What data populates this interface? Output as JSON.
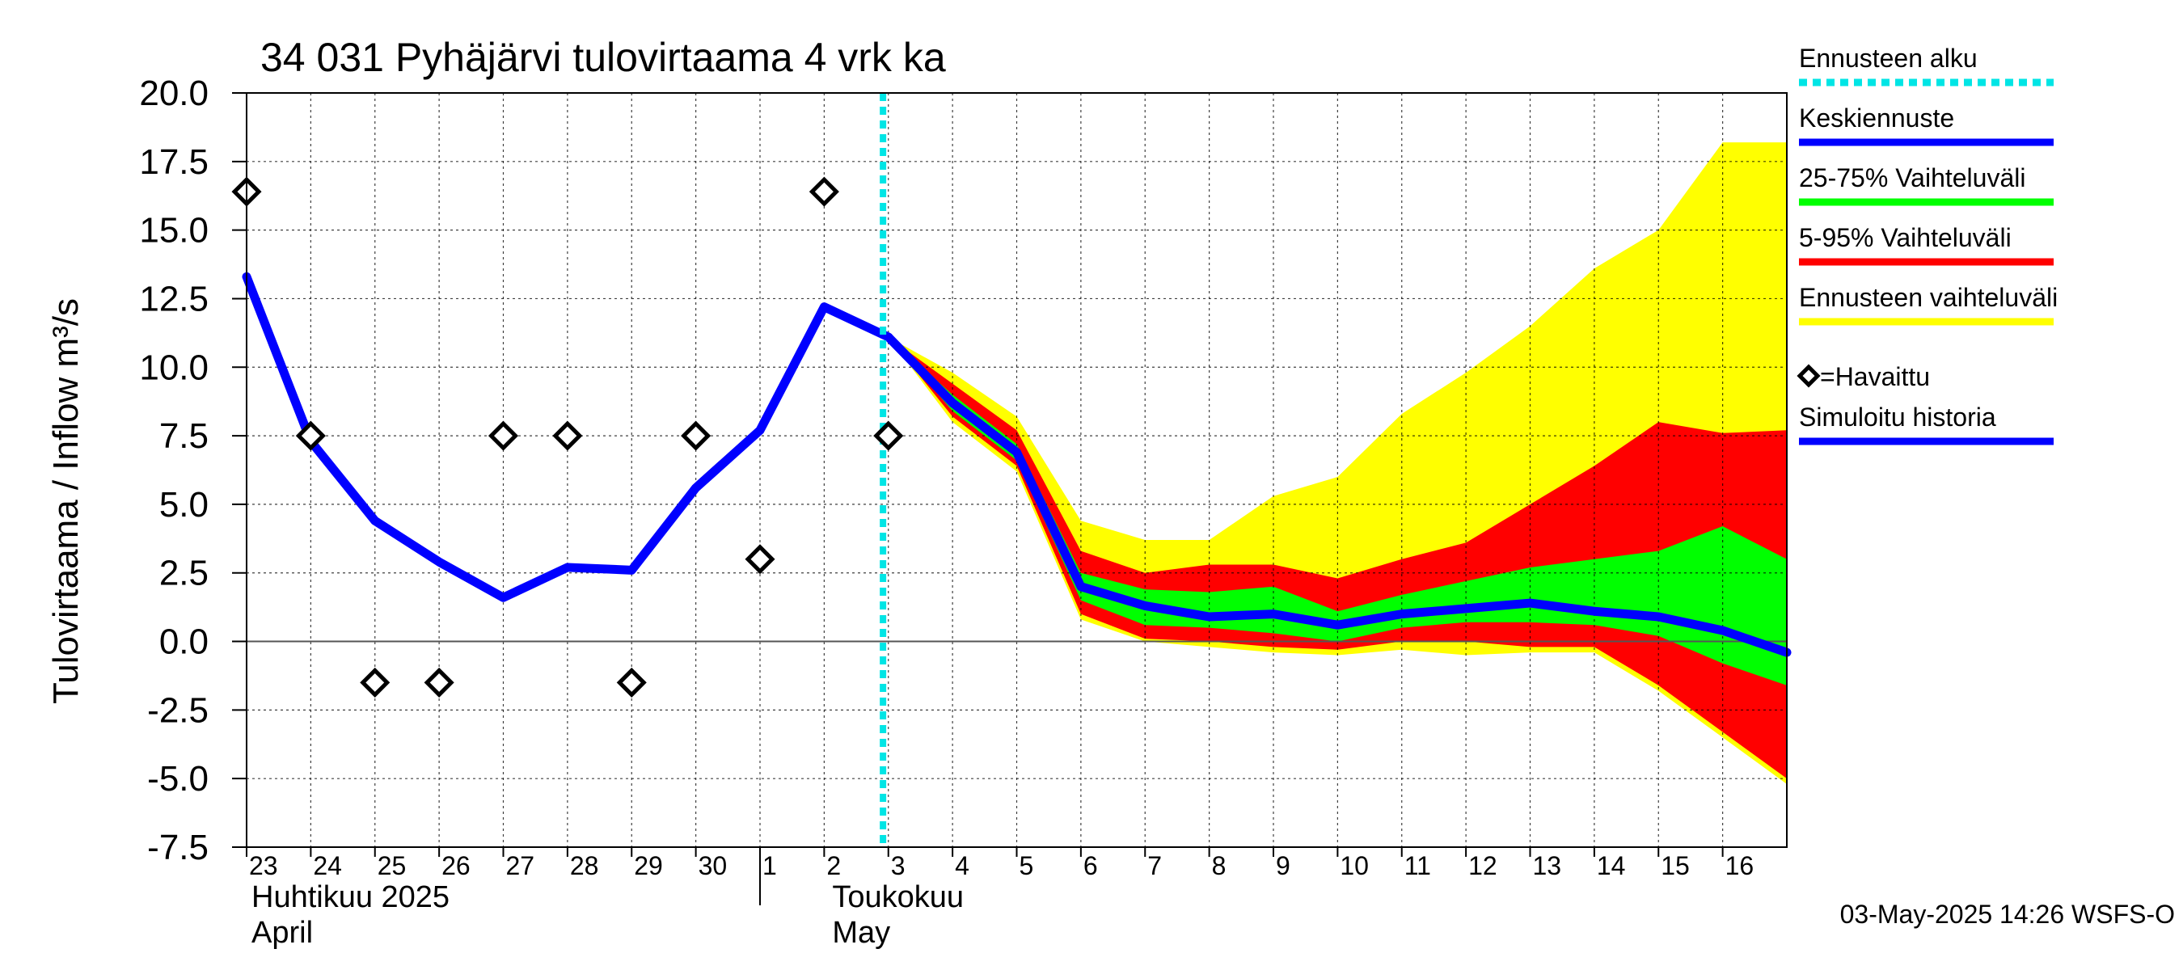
{
  "chart_data": {
    "type": "area",
    "title": "34 031 Pyhäjärvi tulovirtaama 4 vrk ka",
    "ylabel": "Tulovirtaama / Inflow    m³/s",
    "ylim": [
      -7.5,
      20.0
    ],
    "yticks": [
      "20.0",
      "17.5",
      "15.0",
      "12.5",
      "10.0",
      "7.5",
      "5.0",
      "2.5",
      "0.0",
      "-2.5",
      "-5.0",
      "-7.5"
    ],
    "x_start": "2025-04-23",
    "x_end": "2025-05-17",
    "x_tick_labels": [
      "23",
      "24",
      "25",
      "26",
      "27",
      "28",
      "29",
      "30",
      "1",
      "2",
      "3",
      "4",
      "5",
      "6",
      "7",
      "8",
      "9",
      "10",
      "11",
      "12",
      "13",
      "14",
      "15",
      "16"
    ],
    "month_labels": [
      {
        "line1": "Huhtikuu  2025",
        "line2": "April"
      },
      {
        "line1": "Toukokuu",
        "line2": "May"
      }
    ],
    "forecast_start": "2025-05-02 22:00",
    "footer": "03-May-2025 14:26 WSFS-O",
    "grid": true,
    "series": [
      {
        "name": "Simuloitu historia",
        "color": "#0000ff",
        "x": [
          "2025-04-23",
          "2025-04-24",
          "2025-04-25",
          "2025-04-26",
          "2025-04-27",
          "2025-04-28",
          "2025-04-29",
          "2025-04-30",
          "2025-05-01",
          "2025-05-02",
          "2025-05-03"
        ],
        "values": [
          13.3,
          7.3,
          4.4,
          2.9,
          1.6,
          2.7,
          2.6,
          5.6,
          7.7,
          12.2,
          11.1
        ]
      },
      {
        "name": "Keskiennuste",
        "color": "#0000ff",
        "x": [
          "2025-05-03",
          "2025-05-04",
          "2025-05-05",
          "2025-05-06",
          "2025-05-07",
          "2025-05-08",
          "2025-05-09",
          "2025-05-10",
          "2025-05-11",
          "2025-05-12",
          "2025-05-13",
          "2025-05-14",
          "2025-05-15",
          "2025-05-16",
          "2025-05-17"
        ],
        "values": [
          11.1,
          8.7,
          6.9,
          2.0,
          1.3,
          0.9,
          1.0,
          0.6,
          1.0,
          1.2,
          1.4,
          1.1,
          0.9,
          0.4,
          -0.4
        ]
      },
      {
        "name": "Ennusteen vaihteluväli",
        "color": "#ffff00",
        "x": [
          "2025-05-03",
          "2025-05-04",
          "2025-05-05",
          "2025-05-06",
          "2025-05-07",
          "2025-05-08",
          "2025-05-09",
          "2025-05-10",
          "2025-05-11",
          "2025-05-12",
          "2025-05-13",
          "2025-05-14",
          "2025-05-15",
          "2025-05-16",
          "2025-05-17"
        ],
        "upper": [
          11.1,
          9.8,
          8.2,
          4.4,
          3.7,
          3.7,
          5.3,
          6.0,
          8.3,
          9.8,
          11.5,
          13.6,
          15.0,
          18.2,
          18.2
        ],
        "lower": [
          11.1,
          8.0,
          6.2,
          0.8,
          0.0,
          -0.2,
          -0.4,
          -0.5,
          -0.3,
          -0.5,
          -0.4,
          -0.4,
          -1.8,
          -3.5,
          -5.2
        ]
      },
      {
        "name": "5-95% Vaihteluväli",
        "color": "#ff0000",
        "x": [
          "2025-05-03",
          "2025-05-04",
          "2025-05-05",
          "2025-05-06",
          "2025-05-07",
          "2025-05-08",
          "2025-05-09",
          "2025-05-10",
          "2025-05-11",
          "2025-05-12",
          "2025-05-13",
          "2025-05-14",
          "2025-05-15",
          "2025-05-16",
          "2025-05-17"
        ],
        "upper": [
          11.1,
          9.4,
          7.7,
          3.3,
          2.5,
          2.8,
          2.8,
          2.3,
          3.0,
          3.6,
          5.0,
          6.4,
          8.0,
          7.6,
          7.7
        ],
        "lower": [
          11.1,
          8.2,
          6.4,
          1.0,
          0.1,
          0.0,
          -0.2,
          -0.3,
          0.0,
          0.0,
          -0.2,
          -0.2,
          -1.6,
          -3.3,
          -5.0
        ]
      },
      {
        "name": "25-75% Vaihteluväli",
        "color": "#00ff00",
        "x": [
          "2025-05-03",
          "2025-05-04",
          "2025-05-05",
          "2025-05-06",
          "2025-05-07",
          "2025-05-08",
          "2025-05-09",
          "2025-05-10",
          "2025-05-11",
          "2025-05-12",
          "2025-05-13",
          "2025-05-14",
          "2025-05-15",
          "2025-05-16",
          "2025-05-17"
        ],
        "upper": [
          11.1,
          9.0,
          7.2,
          2.5,
          1.9,
          1.8,
          2.0,
          1.1,
          1.7,
          2.2,
          2.7,
          3.0,
          3.3,
          4.2,
          3.0
        ],
        "lower": [
          11.1,
          8.4,
          6.6,
          1.5,
          0.6,
          0.5,
          0.3,
          0.0,
          0.5,
          0.7,
          0.7,
          0.6,
          0.2,
          -0.8,
          -1.6
        ]
      }
    ],
    "observed": {
      "name": "=Havaittu",
      "x": [
        "2025-04-23",
        "2025-04-24",
        "2025-04-25",
        "2025-04-26",
        "2025-04-27",
        "2025-04-28",
        "2025-04-29",
        "2025-04-30",
        "2025-05-01",
        "2025-05-02",
        "2025-05-03"
      ],
      "values": [
        16.4,
        7.5,
        -1.5,
        -1.5,
        7.5,
        7.5,
        -1.5,
        7.5,
        3.0,
        16.4,
        7.5
      ]
    },
    "legend": {
      "placement": "right",
      "items": [
        {
          "label": "Ennusteen alku",
          "color": "#00e5e5",
          "style": "dotted"
        },
        {
          "label": "Keskiennuste",
          "color": "#0000ff",
          "style": "line"
        },
        {
          "label": "25-75% Vaihteluväli",
          "color": "#00ff00",
          "style": "line"
        },
        {
          "label": "5-95% Vaihteluväli",
          "color": "#ff0000",
          "style": "line"
        },
        {
          "label": "Ennusteen vaihteluväli",
          "color": "#ffff00",
          "style": "line"
        },
        {
          "label": "=Havaittu",
          "color": "#000000",
          "style": "diamond"
        },
        {
          "label": "Simuloitu historia",
          "color": "#0000ff",
          "style": "line"
        }
      ]
    }
  }
}
